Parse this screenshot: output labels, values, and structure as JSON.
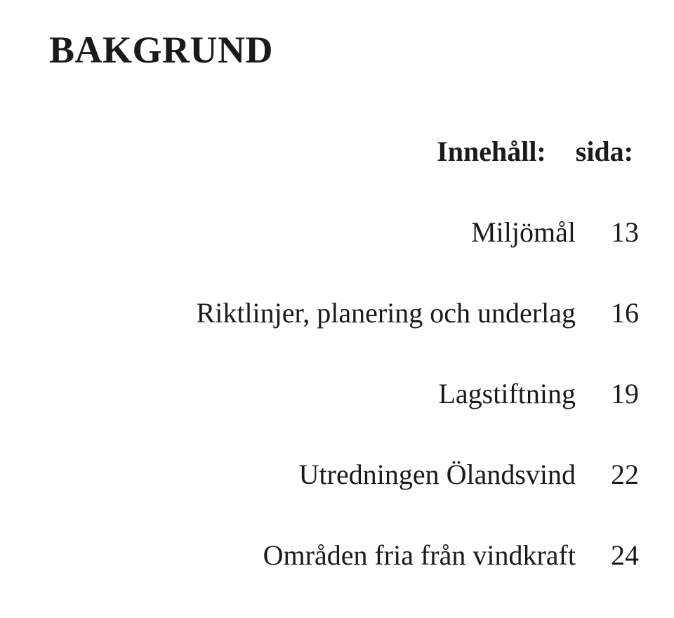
{
  "title": "BAKGRUND",
  "header": {
    "label": "Innehåll:",
    "page": "sida:"
  },
  "entries": [
    {
      "label": "Miljömål",
      "page": "13"
    },
    {
      "label": "Riktlinjer, planering och underlag",
      "page": "16"
    },
    {
      "label": "Lagstiftning",
      "page": "19"
    },
    {
      "label": "Utredningen Ölandsvind",
      "page": "22"
    },
    {
      "label": "Områden fria från vindkraft",
      "page": "24"
    }
  ],
  "colors": {
    "background": "#ffffff",
    "text": "#1a1a1a"
  },
  "typography": {
    "title_fontsize": 54,
    "body_fontsize": 40,
    "font_family": "Georgia, Times New Roman, serif"
  }
}
